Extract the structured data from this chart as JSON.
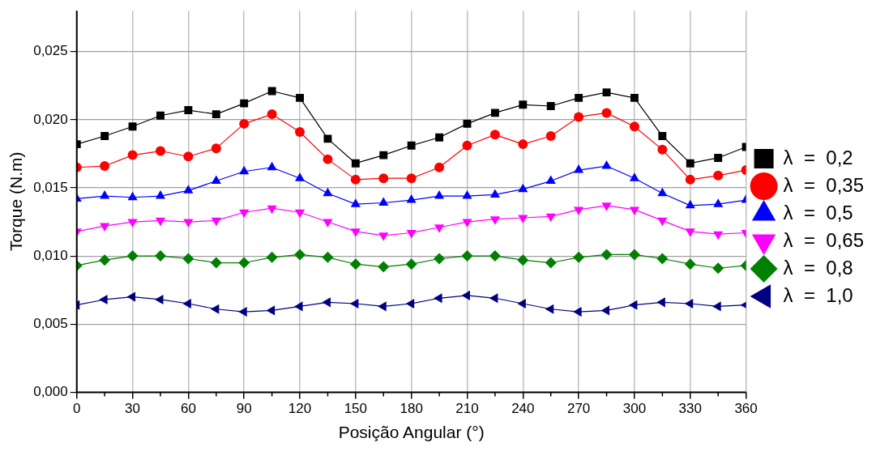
{
  "chart_data": {
    "type": "line",
    "xlabel": "Posição Angular (°)",
    "ylabel": "Torque (N.m)",
    "x": [
      0,
      15,
      30,
      45,
      60,
      75,
      90,
      105,
      120,
      135,
      150,
      165,
      180,
      195,
      210,
      225,
      240,
      255,
      270,
      285,
      300,
      315,
      330,
      345,
      360
    ],
    "xlim": [
      0,
      360
    ],
    "xticks": [
      0,
      30,
      60,
      90,
      120,
      150,
      180,
      210,
      240,
      270,
      300,
      330,
      360
    ],
    "ylim": [
      0,
      0.028
    ],
    "yticks": [
      {
        "value": 0,
        "label": "0,000"
      },
      {
        "value": 0.005,
        "label": "0,005"
      },
      {
        "value": 0.01,
        "label": "0,010"
      },
      {
        "value": 0.015,
        "label": "0,015"
      },
      {
        "value": 0.02,
        "label": "0,020"
      },
      {
        "value": 0.025,
        "label": "0,025"
      }
    ],
    "grid": true,
    "legend": "right",
    "line_style": "solid",
    "series": [
      {
        "name": "λ  =  0,2",
        "color": "#000000",
        "marker": "square",
        "values": [
          0.0182,
          0.0188,
          0.0195,
          0.0203,
          0.0207,
          0.0204,
          0.0212,
          0.0221,
          0.0216,
          0.0186,
          0.0168,
          0.0174,
          0.0181,
          0.0187,
          0.0197,
          0.0205,
          0.0211,
          0.021,
          0.0216,
          0.022,
          0.0216,
          0.0188,
          0.0168,
          0.0172,
          0.018
        ]
      },
      {
        "name": "λ  =  0,35",
        "color": "#ff0000",
        "marker": "circle",
        "values": [
          0.0165,
          0.0166,
          0.0174,
          0.0177,
          0.0173,
          0.0179,
          0.0197,
          0.0204,
          0.0191,
          0.0171,
          0.0156,
          0.0157,
          0.0157,
          0.0165,
          0.0181,
          0.0189,
          0.0182,
          0.0188,
          0.0202,
          0.0205,
          0.0195,
          0.0178,
          0.0156,
          0.0159,
          0.0163
        ]
      },
      {
        "name": "λ  =  0,5",
        "color": "#0000ff",
        "marker": "triangle",
        "values": [
          0.0142,
          0.0144,
          0.0143,
          0.0144,
          0.0148,
          0.0155,
          0.0162,
          0.0165,
          0.0157,
          0.0146,
          0.0138,
          0.0139,
          0.0141,
          0.0144,
          0.0144,
          0.0145,
          0.0149,
          0.0155,
          0.0163,
          0.0166,
          0.0157,
          0.0146,
          0.0137,
          0.0138,
          0.0141
        ]
      },
      {
        "name": "λ  =  0,65",
        "color": "#ff00ff",
        "marker": "triangle-down",
        "values": [
          0.0118,
          0.0122,
          0.0125,
          0.0126,
          0.0125,
          0.0126,
          0.0132,
          0.0135,
          0.0132,
          0.0125,
          0.0118,
          0.0115,
          0.0117,
          0.0121,
          0.0125,
          0.0127,
          0.0128,
          0.0129,
          0.0134,
          0.0137,
          0.0134,
          0.0126,
          0.0118,
          0.0116,
          0.0117
        ]
      },
      {
        "name": "λ  =  0,8",
        "color": "#008000",
        "marker": "diamond",
        "values": [
          0.0093,
          0.0097,
          0.01,
          0.01,
          0.0098,
          0.0095,
          0.0095,
          0.0099,
          0.0101,
          0.0099,
          0.0094,
          0.0092,
          0.0094,
          0.0098,
          0.01,
          0.01,
          0.0097,
          0.0095,
          0.0099,
          0.0101,
          0.0101,
          0.0098,
          0.0094,
          0.0091,
          0.0093
        ]
      },
      {
        "name": "λ  =  1,0",
        "color": "#000080",
        "marker": "triangle-left",
        "values": [
          0.0064,
          0.0068,
          0.007,
          0.0068,
          0.0065,
          0.0061,
          0.0059,
          0.006,
          0.0063,
          0.0066,
          0.0065,
          0.0063,
          0.0065,
          0.0069,
          0.0071,
          0.0069,
          0.0065,
          0.0061,
          0.0059,
          0.006,
          0.0064,
          0.0066,
          0.0065,
          0.0063,
          0.0064
        ]
      }
    ]
  }
}
